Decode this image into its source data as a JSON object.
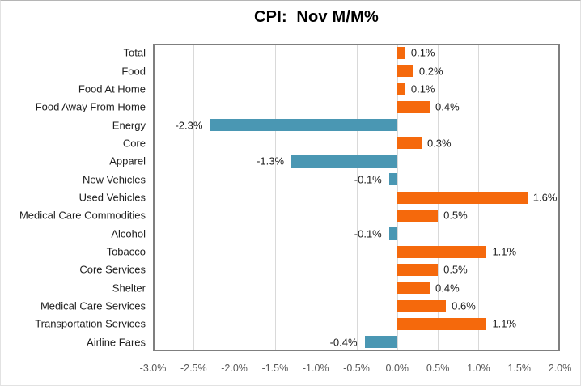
{
  "title": "CPI:  Nov M/M%",
  "colors": {
    "positive_bar": "#F5690C",
    "negative_bar": "#4A97B3",
    "gridline": "#D9D9D9",
    "plot_border": "#7F7F7F",
    "axis_text": "#595959",
    "label_text": "#1F1F1F",
    "title_text": "#000000",
    "background": "#FFFFFF"
  },
  "chart_data": {
    "type": "bar",
    "orientation": "horizontal",
    "title": "CPI:  Nov M/M%",
    "categories": [
      "Total",
      "Food",
      "Food At Home",
      "Food Away From Home",
      "Energy",
      "Core",
      "Apparel",
      "New Vehicles",
      "Used Vehicles",
      "Medical Care Commodities",
      "Alcohol",
      "Tobacco",
      "Core Services",
      "Shelter",
      "Medical Care Services",
      "Transportation Services",
      "Airline Fares"
    ],
    "values": [
      0.1,
      0.2,
      0.1,
      0.4,
      -2.3,
      0.3,
      -1.3,
      -0.1,
      1.6,
      0.5,
      -0.1,
      1.1,
      0.5,
      0.4,
      0.6,
      1.1,
      -0.4
    ],
    "value_labels": [
      "0.1%",
      "0.2%",
      "0.1%",
      "0.4%",
      "-2.3%",
      "0.3%",
      "-1.3%",
      "-0.1%",
      "1.6%",
      "0.5%",
      "-0.1%",
      "1.1%",
      "0.5%",
      "0.4%",
      "0.6%",
      "1.1%",
      "-0.4%"
    ],
    "xlabel": "",
    "ylabel": "",
    "xlim": [
      -3.0,
      2.0
    ],
    "x_tick_values": [
      -3.0,
      -2.5,
      -2.0,
      -1.5,
      -1.0,
      -0.5,
      0.0,
      0.5,
      1.0,
      1.5,
      2.0
    ],
    "x_tick_labels": [
      "-3.0%",
      "-2.5%",
      "-2.0%",
      "-1.5%",
      "-1.0%",
      "-0.5%",
      "0.0%",
      "0.5%",
      "1.0%",
      "1.5%",
      "2.0%"
    ],
    "grid": true,
    "legend": false,
    "positive_color": "#F5690C",
    "negative_color": "#4A97B3"
  }
}
